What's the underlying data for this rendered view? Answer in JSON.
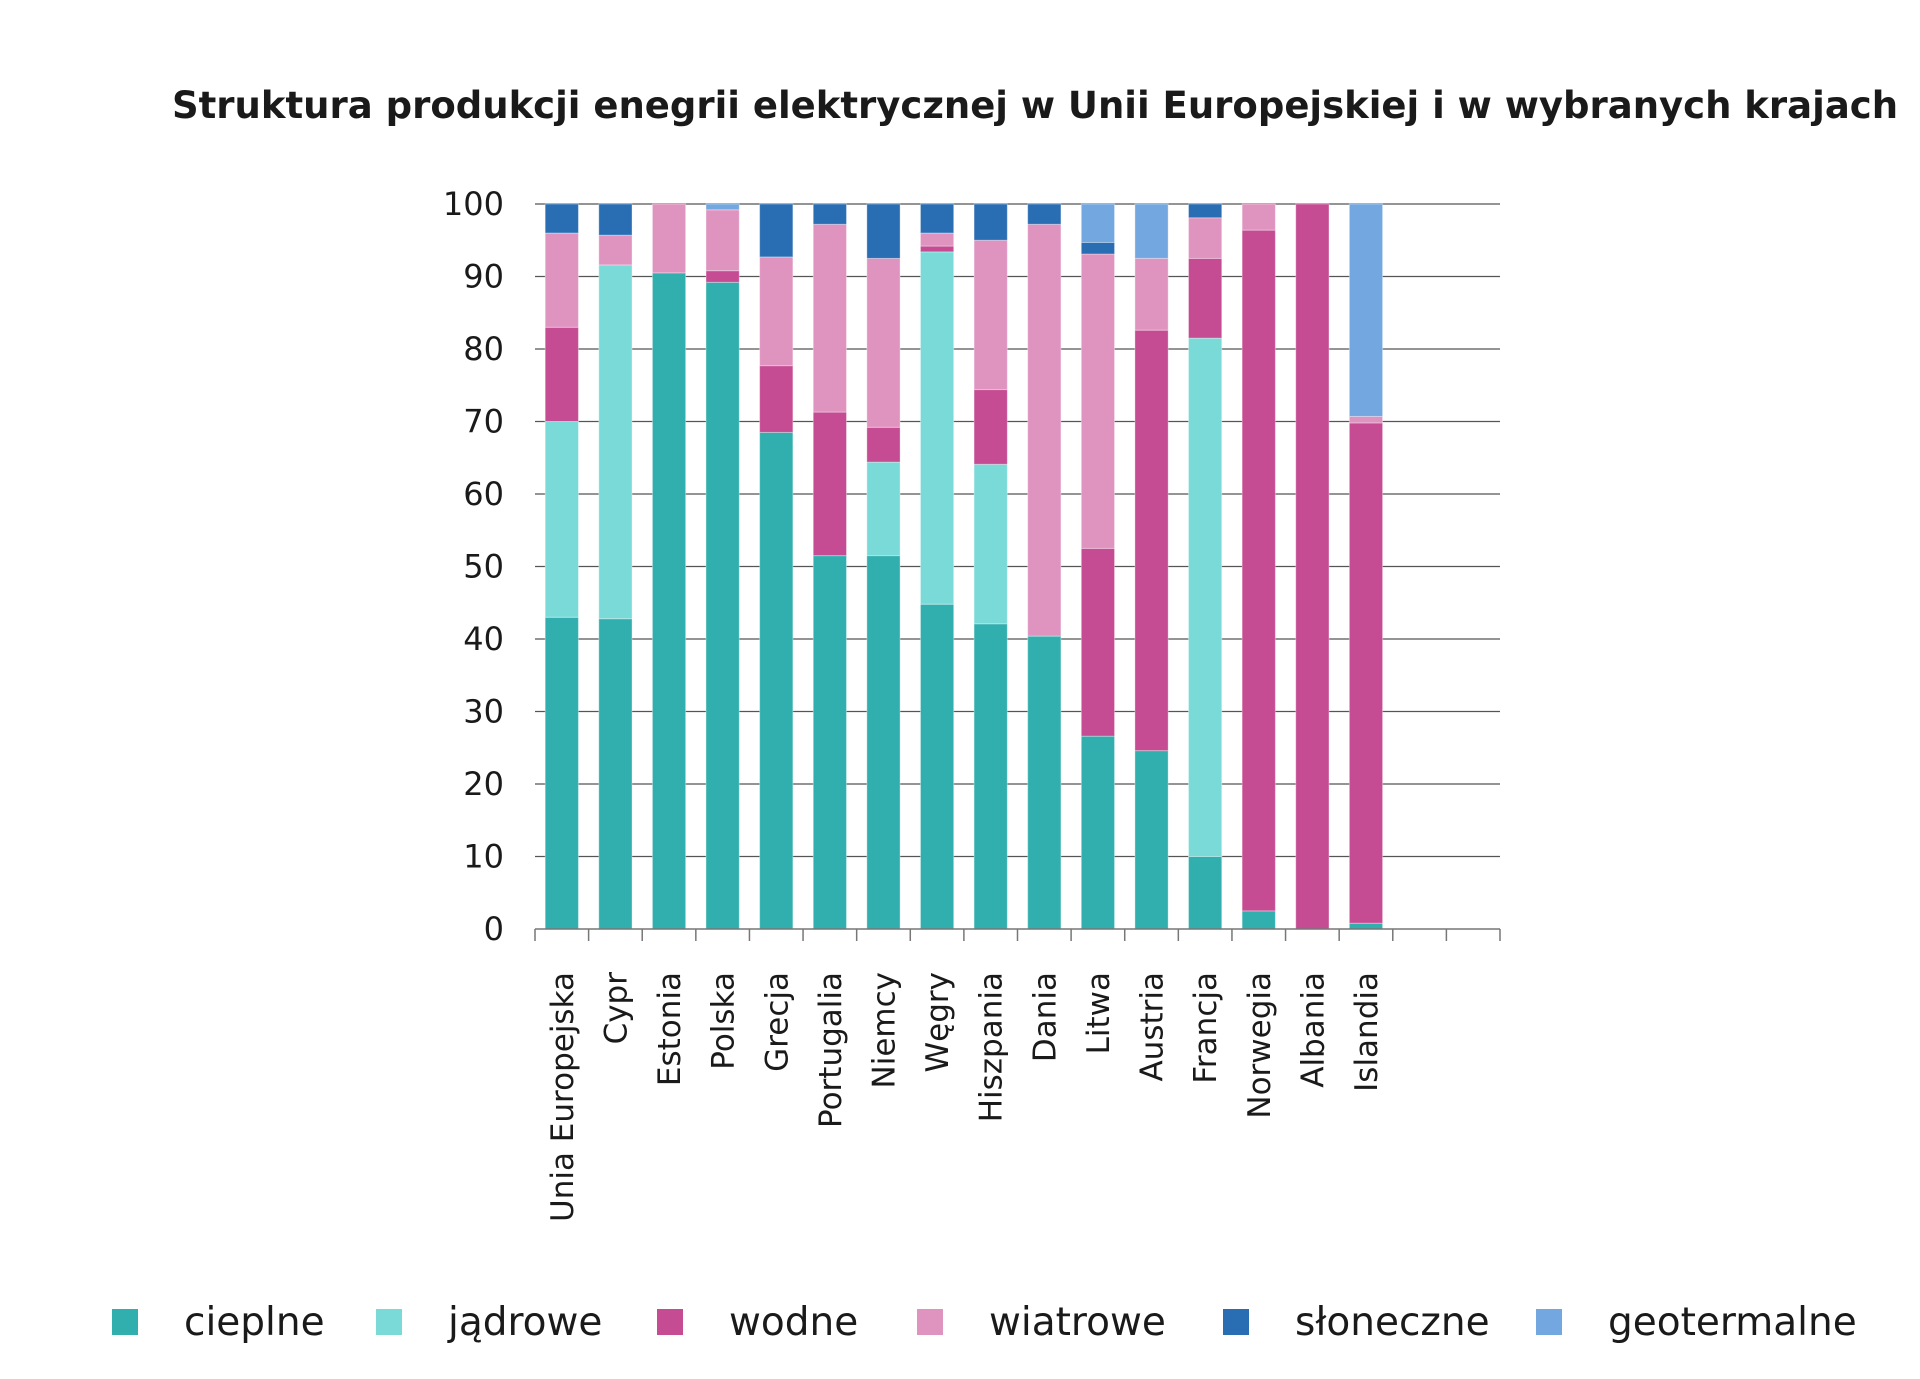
{
  "chart_data": {
    "type": "bar",
    "stacked": true,
    "title": "Struktura produkcji enegrii elektrycznej w Unii Europejskiej i w wybranych krajach",
    "xlabel": "",
    "ylabel": "",
    "ylim": [
      0,
      100
    ],
    "yticks": [
      "0",
      "10",
      "20",
      "30",
      "40",
      "50",
      "60",
      "70",
      "80",
      "90",
      "100"
    ],
    "grid": true,
    "legend_position": "bottom",
    "categories": [
      "Unia Europejska",
      "Cypr",
      "Estonia",
      "Polska",
      "Grecja",
      "Portugalia",
      "Niemcy",
      "Węgry",
      "Hiszpania",
      "Dania",
      "Litwa",
      "Austria",
      "Francja",
      "Norwegia",
      "Albania",
      "Islandia"
    ],
    "series": [
      {
        "name": "cieplne",
        "color": "#31afae",
        "values": [
          43,
          42.8,
          90.5,
          89.2,
          68.5,
          51.5,
          51.5,
          44.8,
          42.1,
          40.4,
          26.6,
          24.6,
          10,
          2.5,
          0,
          0.8
        ]
      },
      {
        "name": "jądrowe",
        "color": "#7adad8",
        "values": [
          27,
          48.8,
          0,
          0,
          0,
          0,
          12.9,
          48.6,
          22,
          0,
          0,
          0,
          71.5,
          0,
          0,
          0
        ]
      },
      {
        "name": "wodne",
        "color": "#c54b92",
        "values": [
          13,
          0,
          0,
          1.6,
          9.2,
          19.8,
          4.8,
          0.8,
          10.3,
          0,
          25.9,
          58,
          11,
          93.9,
          100,
          69
        ]
      },
      {
        "name": "wiatrowe",
        "color": "#df94c0",
        "values": [
          13,
          4.1,
          9.5,
          8.4,
          15,
          25.9,
          23.3,
          1.8,
          20.6,
          56.8,
          40.6,
          9.9,
          5.6,
          3.6,
          0,
          0.9
        ]
      },
      {
        "name": "słoneczne",
        "color": "#296db3",
        "values": [
          4,
          4.3,
          0,
          0,
          7.3,
          2.8,
          7.5,
          4,
          5,
          2.8,
          1.6,
          0,
          1.9,
          0,
          0,
          0
        ]
      },
      {
        "name": "geotermalne",
        "color": "#73a7df",
        "values": [
          0,
          0,
          0,
          0.8,
          0,
          0,
          0,
          0,
          0,
          0,
          5.3,
          7.5,
          0,
          0,
          0,
          29.3
        ]
      }
    ]
  }
}
